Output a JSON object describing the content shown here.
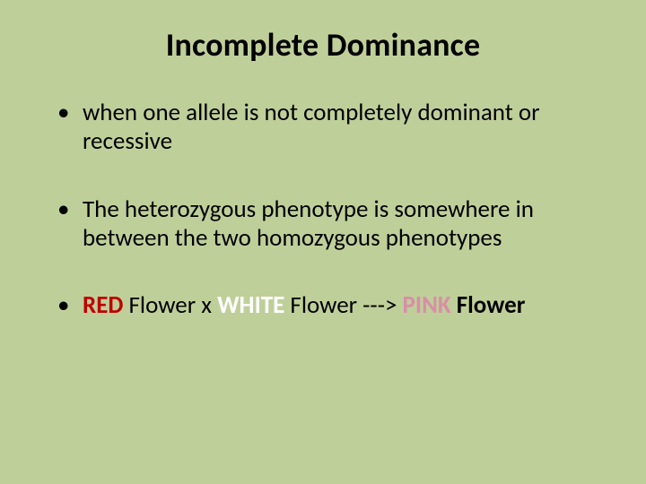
{
  "background_color": "#bfcf9a",
  "title": {
    "text": "Incomplete Dominance",
    "fontsize": 36,
    "weight": 700,
    "color": "#000000",
    "align": "center"
  },
  "bullets": {
    "fontsize": 27,
    "line_height": 1.18,
    "bullet_color": "#000000",
    "items": [
      {
        "plain": "when one allele is not completely dominant or recessive"
      },
      {
        "plain": "The heterozygous phenotype is somewhere in  between the two homozygous phenotypes"
      },
      {
        "segments": [
          {
            "text": "RED",
            "style": "red"
          },
          {
            "text": " Flower x ",
            "style": "plain"
          },
          {
            "text": "WHITE",
            "style": "white"
          },
          {
            "text": " Flower ---> ",
            "style": "plain"
          },
          {
            "text": "PINK",
            "style": "pink"
          },
          {
            "text": " Flower",
            "style": "plain"
          }
        ]
      }
    ]
  },
  "colors": {
    "red": "#c00000",
    "white": "#ffffff",
    "pink": "#d98ea8",
    "text": "#000000"
  },
  "typography": {
    "font_family": "Calibri"
  }
}
